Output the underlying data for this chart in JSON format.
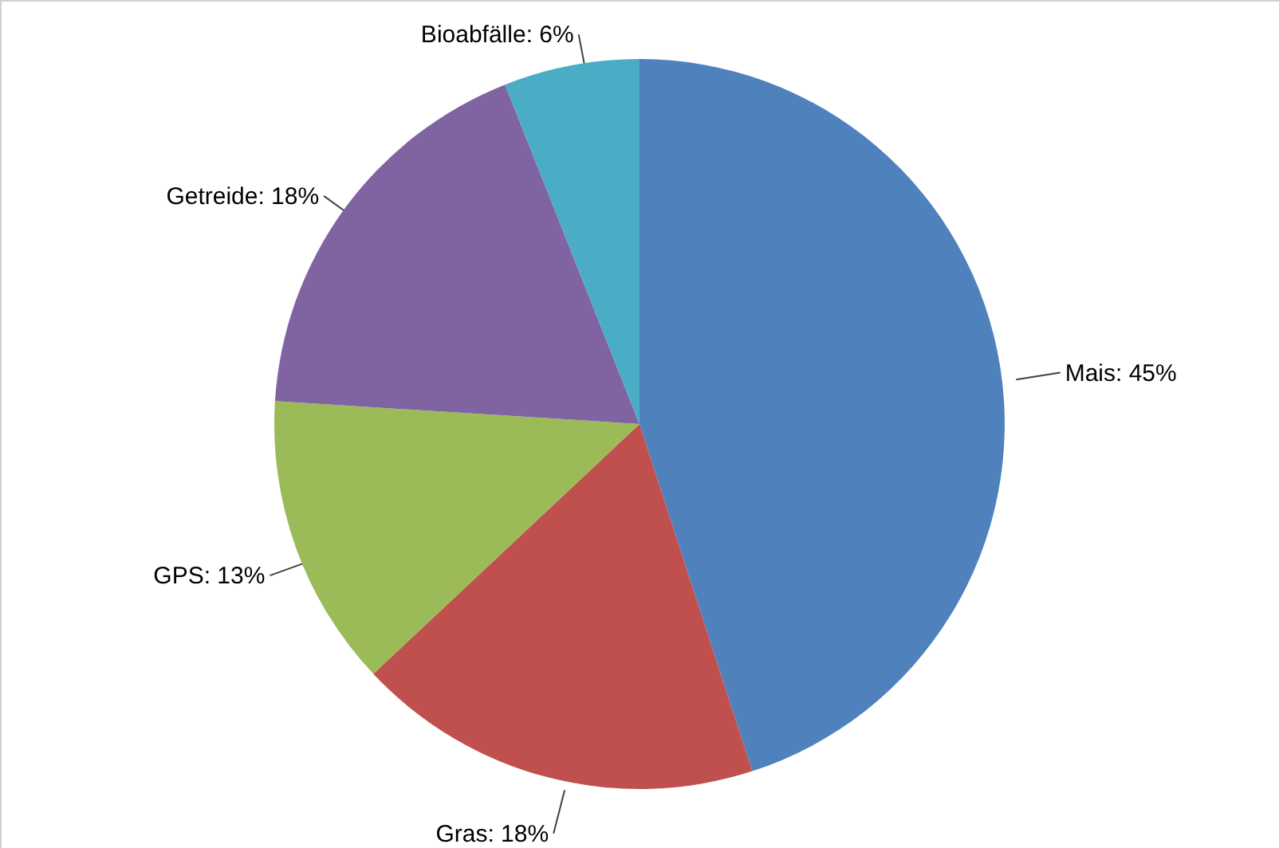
{
  "chart_data": {
    "type": "pie",
    "categories": [
      "Mais",
      "Gras",
      "GPS",
      "Getreide",
      "Bioabfälle"
    ],
    "values": [
      45,
      18,
      13,
      18,
      6
    ],
    "colors": [
      "#4f81bd",
      "#c0504d",
      "#9bbb59",
      "#8064a2",
      "#4bacc6"
    ],
    "value_labels": [
      "45%",
      "18%",
      "13%",
      "18%",
      "6%"
    ]
  }
}
